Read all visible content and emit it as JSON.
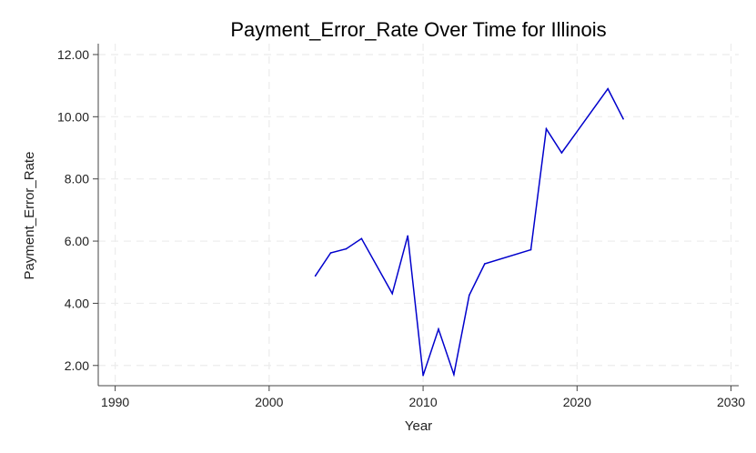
{
  "chart_data": {
    "type": "line",
    "title": "Payment_Error_Rate Over Time for Illinois",
    "xlabel": "Year",
    "ylabel": "Payment_Error_Rate",
    "xlim": [
      1988.9,
      2030.5
    ],
    "ylim": [
      1.35,
      12.35
    ],
    "xticks": [
      1990,
      2000,
      2010,
      2020,
      2030
    ],
    "xtick_labels": [
      "1990",
      "2000",
      "2010",
      "2020",
      "2030"
    ],
    "yticks": [
      2,
      4,
      6,
      8,
      10,
      12
    ],
    "ytick_labels": [
      "2.00",
      "4.00",
      "6.00",
      "8.00",
      "10.00",
      "12.00"
    ],
    "grid": true,
    "series": [
      {
        "color": "#0000cc",
        "x": [
          2003,
          2004,
          2005,
          2006,
          2008,
          2009,
          2010,
          2011,
          2012,
          2013,
          2014,
          2017,
          2018,
          2019,
          2022,
          2023
        ],
        "y": [
          4.88,
          5.62,
          5.75,
          6.08,
          4.31,
          6.17,
          1.68,
          3.17,
          1.71,
          4.26,
          5.27,
          5.72,
          9.61,
          8.84,
          10.9,
          9.93
        ]
      }
    ]
  }
}
